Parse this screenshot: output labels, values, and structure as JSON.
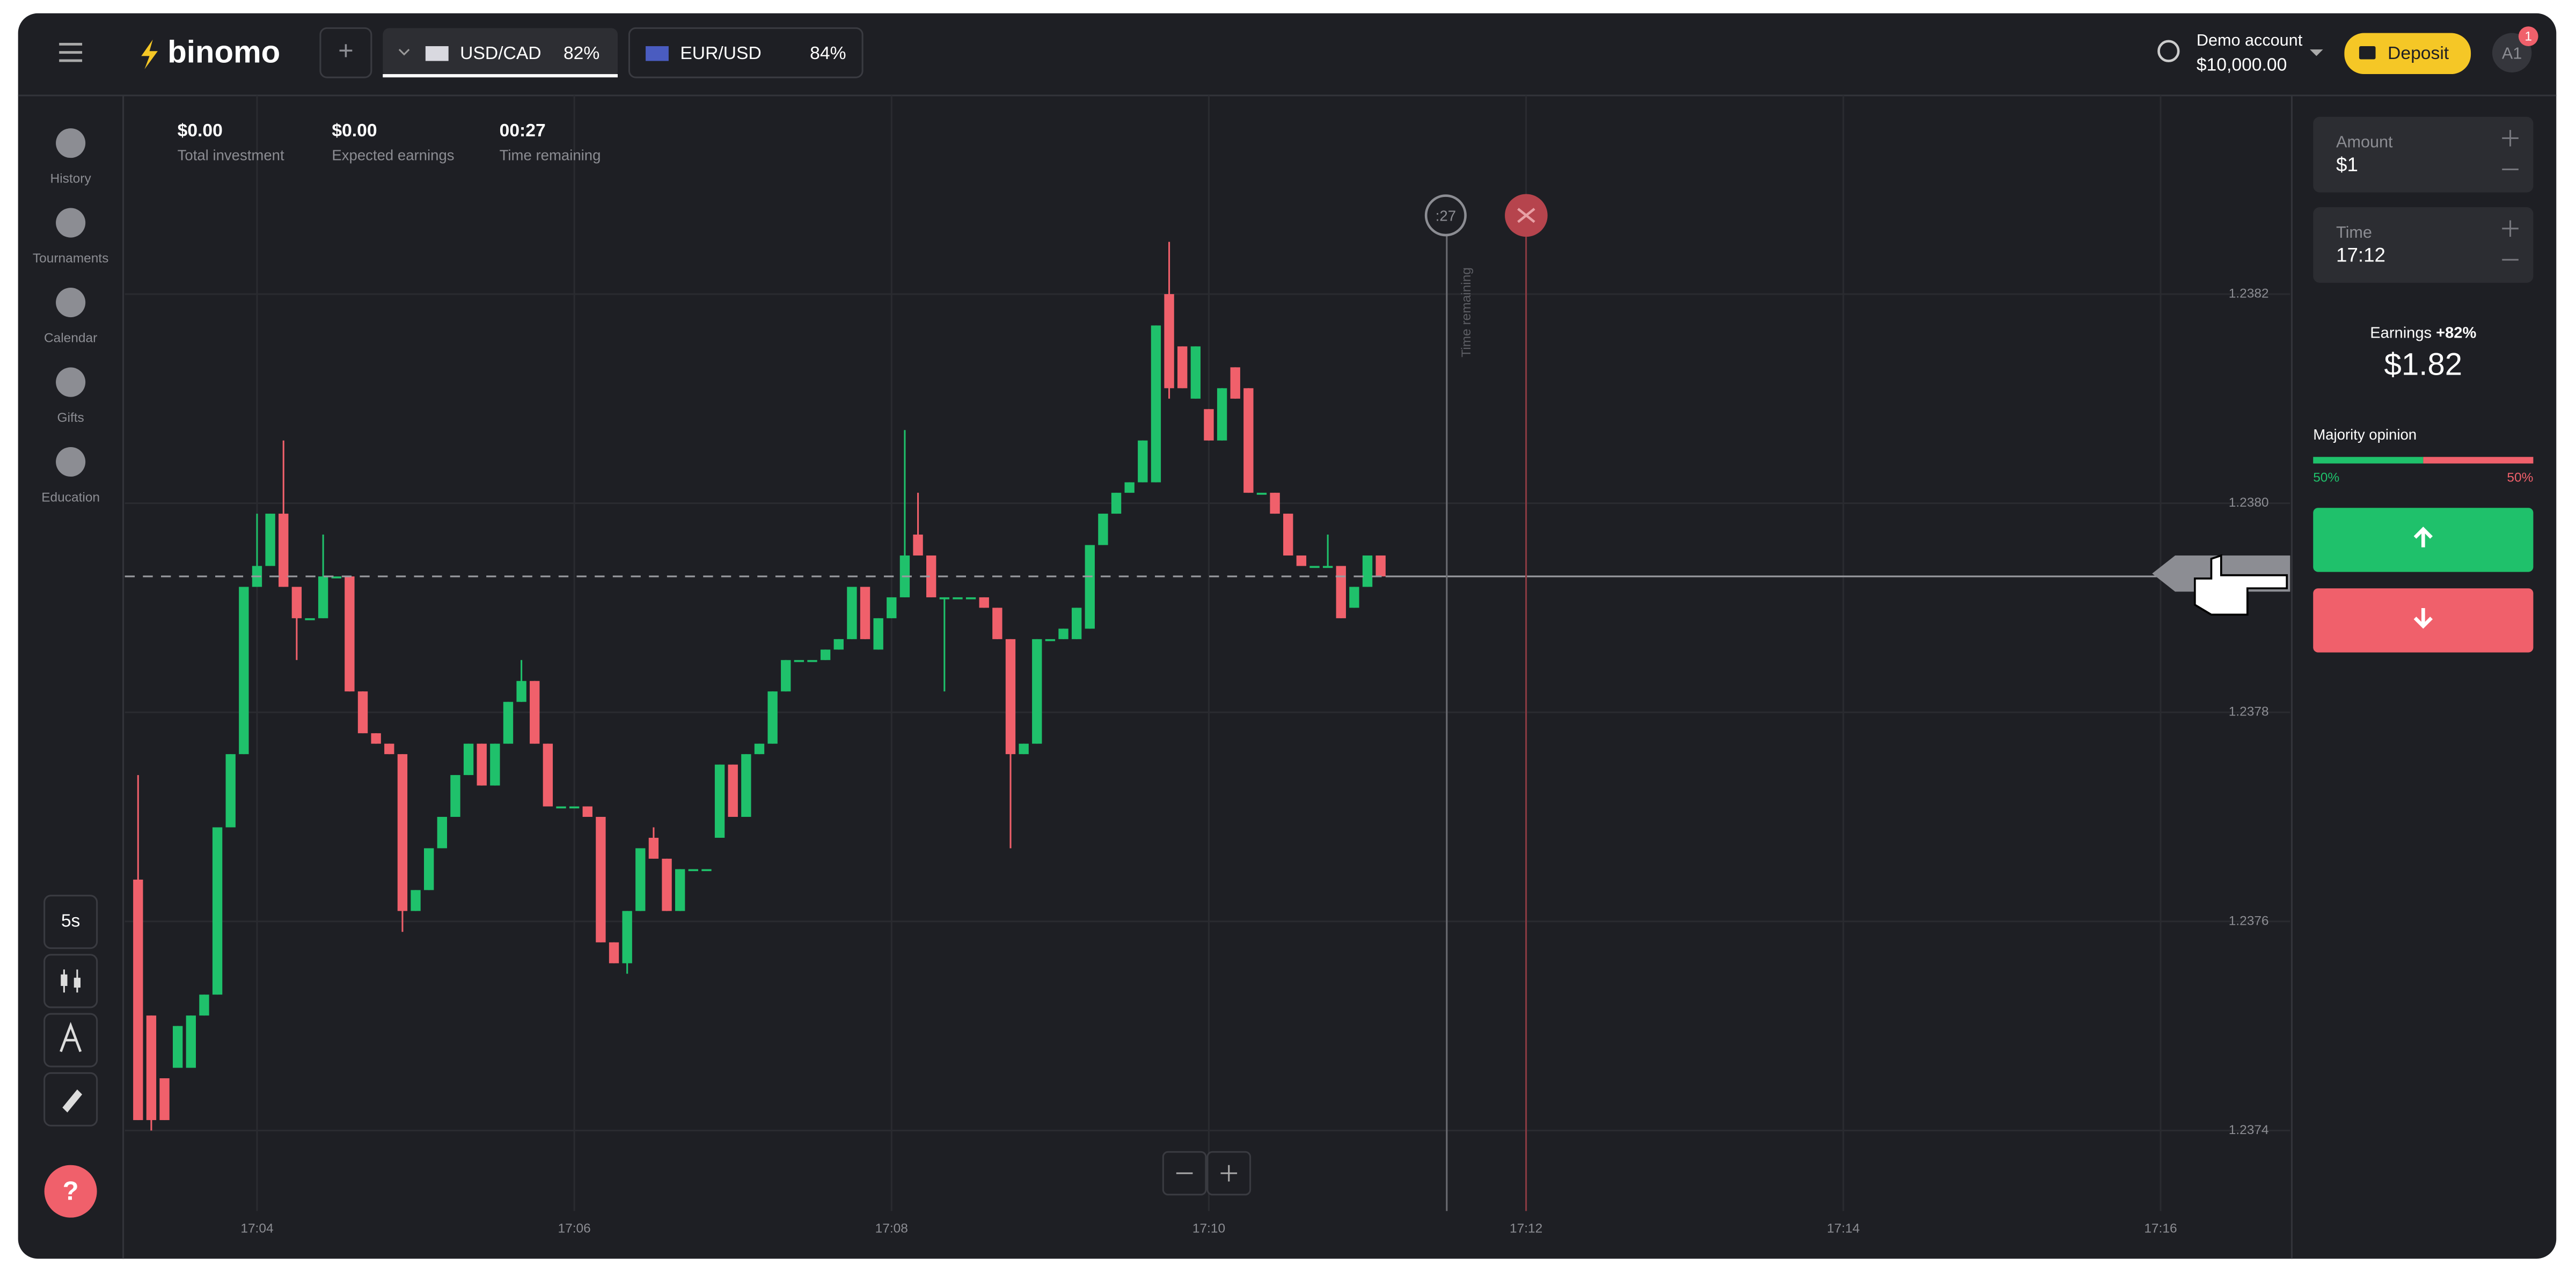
{
  "header": {
    "logo": "binomo",
    "tabs": [
      {
        "label": "USD/CAD",
        "payout": "82%"
      },
      {
        "label": "EUR/USD",
        "payout": "84%"
      }
    ],
    "account": {
      "label": "Demo account",
      "balance": "$10,000.00"
    },
    "deposit": "Deposit",
    "avatar": "A1",
    "notifications": "1"
  },
  "sidebar": {
    "items": [
      "History",
      "Tournaments",
      "Calendar",
      "Gifts",
      "Education"
    ],
    "timeframe": "5s"
  },
  "stats": [
    {
      "value": "$0.00",
      "label": "Total investment"
    },
    {
      "value": "$0.00",
      "label": "Expected earnings"
    },
    {
      "value": "00:27",
      "label": "Time remaining"
    }
  ],
  "timer": {
    "countdown": ":27",
    "label": "Time remaining"
  },
  "trade_panel": {
    "amount_label": "Amount",
    "amount": "$1",
    "time_label": "Time",
    "time": "17:12",
    "earnings_label": "Earnings",
    "earnings_rate": "+82%",
    "earnings": "$1.82",
    "majority": {
      "label": "Majority opinion",
      "values": [
        50,
        50
      ],
      "value_labels": [
        "50%",
        "50%"
      ]
    }
  },
  "help": "?",
  "chart_data": {
    "type": "candlestick",
    "up_color": "#1fc16b",
    "down_color": "#f0606b",
    "grid": true,
    "x": [
      195,
      200,
      205,
      210,
      215,
      220,
      225,
      230,
      235,
      240,
      245,
      250,
      255,
      260,
      265,
      270,
      275,
      280,
      285,
      290,
      295,
      300,
      305,
      310,
      315,
      320,
      325,
      330,
      335,
      340,
      345,
      350,
      355,
      360,
      365,
      370,
      375,
      380,
      385,
      390,
      395,
      400,
      405,
      410,
      415,
      420,
      425,
      430,
      435,
      440,
      445,
      450,
      455,
      460,
      465,
      470,
      475,
      480,
      485,
      490,
      495,
      500,
      505,
      510,
      515,
      520,
      525,
      530,
      535,
      540,
      545,
      550,
      555,
      560,
      565,
      570,
      575,
      580,
      585,
      590,
      595,
      600,
      605,
      610,
      615,
      620,
      625,
      630,
      635,
      640,
      645,
      650,
      655,
      660,
      665
    ],
    "open": [
      1.23764,
      1.23751,
      1.23745,
      1.23746,
      1.23746,
      1.23751,
      1.23753,
      1.23769,
      1.23776,
      1.23792,
      1.23794,
      1.23799,
      1.23792,
      1.23789,
      1.23789,
      1.23793,
      1.23793,
      1.23782,
      1.23778,
      1.23777,
      1.23776,
      1.23761,
      1.23763,
      1.23767,
      1.2377,
      1.23774,
      1.23777,
      1.23773,
      1.23777,
      1.23781,
      1.23783,
      1.23777,
      1.23771,
      1.23771,
      1.23771,
      1.2377,
      1.23758,
      1.23756,
      1.23761,
      1.23768,
      1.23766,
      1.23761,
      1.23765,
      1.23765,
      1.23768,
      1.23775,
      1.2377,
      1.23776,
      1.23777,
      1.23782,
      1.23785,
      1.23785,
      1.23785,
      1.23786,
      1.23787,
      1.23792,
      1.23786,
      1.23789,
      1.23791,
      1.23797,
      1.23795,
      1.23791,
      1.23791,
      1.23791,
      1.23791,
      1.2379,
      1.23787,
      1.23776,
      1.23777,
      1.23787,
      1.23787,
      1.23787,
      1.23788,
      1.23796,
      1.23799,
      1.23801,
      1.23802,
      1.23802,
      1.2382,
      1.23815,
      1.2381,
      1.23809,
      1.23806,
      1.23813,
      1.23811,
      1.23801,
      1.23801,
      1.23799,
      1.23795,
      1.23794,
      1.23794,
      1.23794,
      1.2379,
      1.23792,
      1.23795
    ],
    "high": [
      1.23774,
      1.23751,
      1.23745,
      1.2375,
      1.23751,
      1.23753,
      1.23769,
      1.23776,
      1.23792,
      1.23799,
      1.23799,
      1.23806,
      1.23792,
      1.23789,
      1.23797,
      1.23793,
      1.23793,
      1.23782,
      1.23778,
      1.23777,
      1.23776,
      1.23763,
      1.23767,
      1.2377,
      1.23774,
      1.23777,
      1.23777,
      1.23777,
      1.23781,
      1.23785,
      1.23783,
      1.23777,
      1.23771,
      1.23771,
      1.23771,
      1.2377,
      1.23758,
      1.23761,
      1.23767,
      1.23769,
      1.23766,
      1.23765,
      1.23765,
      1.23765,
      1.23775,
      1.23775,
      1.23776,
      1.23777,
      1.23782,
      1.23785,
      1.23785,
      1.23785,
      1.23786,
      1.23787,
      1.23792,
      1.23792,
      1.23789,
      1.23791,
      1.23807,
      1.23801,
      1.23795,
      1.23791,
      1.23791,
      1.23791,
      1.23791,
      1.2379,
      1.23787,
      1.23777,
      1.23787,
      1.23787,
      1.23788,
      1.2379,
      1.23796,
      1.23799,
      1.23801,
      1.23802,
      1.23806,
      1.23817,
      1.23825,
      1.23815,
      1.23815,
      1.23809,
      1.23811,
      1.23813,
      1.23811,
      1.23801,
      1.23801,
      1.23799,
      1.23795,
      1.23794,
      1.23797,
      1.23794,
      1.23792,
      1.23795,
      1.23795
    ],
    "low": [
      1.23741,
      1.2374,
      1.23741,
      1.23746,
      1.23746,
      1.23751,
      1.23753,
      1.23769,
      1.23776,
      1.23792,
      1.23794,
      1.23792,
      1.23785,
      1.23789,
      1.23789,
      1.23793,
      1.23782,
      1.23778,
      1.23777,
      1.23776,
      1.23759,
      1.23761,
      1.23763,
      1.23767,
      1.2377,
      1.23774,
      1.23773,
      1.23773,
      1.23777,
      1.23781,
      1.23777,
      1.23771,
      1.23771,
      1.23771,
      1.2377,
      1.23758,
      1.23756,
      1.23755,
      1.23761,
      1.23766,
      1.23761,
      1.23761,
      1.23765,
      1.23765,
      1.23768,
      1.2377,
      1.2377,
      1.23776,
      1.23777,
      1.23782,
      1.23785,
      1.23785,
      1.23785,
      1.23786,
      1.23787,
      1.23787,
      1.23786,
      1.23789,
      1.23791,
      1.23795,
      1.23791,
      1.23782,
      1.23791,
      1.23791,
      1.2379,
      1.23787,
      1.23767,
      1.23776,
      1.23777,
      1.23787,
      1.23787,
      1.23787,
      1.23788,
      1.23796,
      1.23799,
      1.23801,
      1.23802,
      1.23802,
      1.2381,
      1.23811,
      1.2381,
      1.23806,
      1.23806,
      1.2381,
      1.23801,
      1.23801,
      1.23799,
      1.23795,
      1.23794,
      1.23794,
      1.23794,
      1.23789,
      1.2379,
      1.23792,
      1.23793
    ],
    "close": [
      1.23741,
      1.23741,
      1.23741,
      1.2375,
      1.23751,
      1.23753,
      1.23769,
      1.23776,
      1.23792,
      1.23794,
      1.23799,
      1.23792,
      1.23789,
      1.23789,
      1.23793,
      1.23793,
      1.23782,
      1.23778,
      1.23777,
      1.23776,
      1.23761,
      1.23763,
      1.23767,
      1.2377,
      1.23774,
      1.23777,
      1.23773,
      1.23777,
      1.23781,
      1.23783,
      1.23777,
      1.23771,
      1.23771,
      1.23771,
      1.2377,
      1.23758,
      1.23756,
      1.23761,
      1.23767,
      1.23766,
      1.23761,
      1.23765,
      1.23765,
      1.23765,
      1.23775,
      1.2377,
      1.23776,
      1.23777,
      1.23782,
      1.23785,
      1.23785,
      1.23785,
      1.23786,
      1.23787,
      1.23792,
      1.23787,
      1.23789,
      1.23791,
      1.23795,
      1.23795,
      1.23791,
      1.23791,
      1.23791,
      1.23791,
      1.2379,
      1.23787,
      1.23776,
      1.23777,
      1.23787,
      1.23787,
      1.23788,
      1.2379,
      1.23796,
      1.23799,
      1.23801,
      1.23802,
      1.23806,
      1.23817,
      1.23811,
      1.23811,
      1.23815,
      1.23806,
      1.23811,
      1.2381,
      1.23801,
      1.23801,
      1.23799,
      1.23795,
      1.23794,
      1.23794,
      1.23794,
      1.23789,
      1.23792,
      1.23795,
      1.23793
    ],
    "current_price": 1.23793,
    "purchase_deadline": 690,
    "expiration": 720,
    "xlim": [
      190,
      1009
    ],
    "ylim": [
      1.23729,
      1.23839
    ],
    "xticks": [
      {
        "value": 240,
        "label": "17:04"
      },
      {
        "value": 360,
        "label": "17:06"
      },
      {
        "value": 480,
        "label": "17:08"
      },
      {
        "value": 600,
        "label": "17:10"
      },
      {
        "value": 720,
        "label": "17:12"
      },
      {
        "value": 840,
        "label": "17:14"
      },
      {
        "value": 960,
        "label": "17:16"
      }
    ],
    "yticks": [
      1.2374,
      1.2376,
      1.2378,
      {
        "value": 1.238,
        "label": "1.2380"
      },
      1.2382
    ]
  }
}
